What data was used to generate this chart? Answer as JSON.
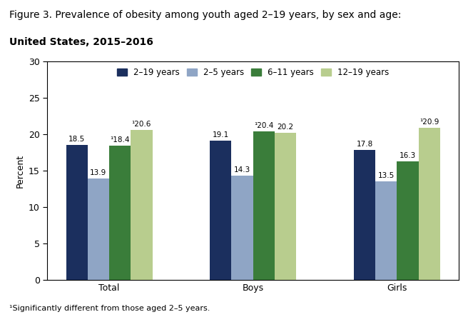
{
  "title_line1": "Figure 3. Prevalence of obesity among youth aged 2–19 years, by sex and age:",
  "title_line2": "United States, 2015–2016",
  "categories": [
    "Total",
    "Boys",
    "Girls"
  ],
  "legend_labels": [
    "2–19 years",
    "2–5 years",
    "6–11 years",
    "12–19 years"
  ],
  "bar_colors": [
    "#1b2f5e",
    "#8fa5c5",
    "#3a7d3a",
    "#b8cd8e"
  ],
  "values": {
    "Total": [
      18.5,
      13.9,
      18.4,
      20.6
    ],
    "Boys": [
      19.1,
      14.3,
      20.4,
      20.2
    ],
    "Girls": [
      17.8,
      13.5,
      16.3,
      20.9
    ]
  },
  "labels": {
    "Total": [
      "18.5",
      "13.9",
      "±18.4",
      "±20.6"
    ],
    "Boys": [
      "19.1",
      "14.3",
      "±20.4",
      "20.2"
    ],
    "Girls": [
      "17.8",
      "13.5",
      "16.3",
      "±20.9"
    ]
  },
  "ylabel": "Percent",
  "ylim": [
    0,
    30
  ],
  "yticks": [
    0,
    5,
    10,
    15,
    20,
    25,
    30
  ],
  "footnote": "¹Significantly different from those aged 2–5 years.",
  "background_color": "#ffffff",
  "plot_bg_color": "#ffffff",
  "bar_width": 0.15,
  "label_fontsize": 7.5,
  "axis_fontsize": 9,
  "legend_fontsize": 8.5,
  "title1_fontsize": 10,
  "title2_fontsize": 10
}
